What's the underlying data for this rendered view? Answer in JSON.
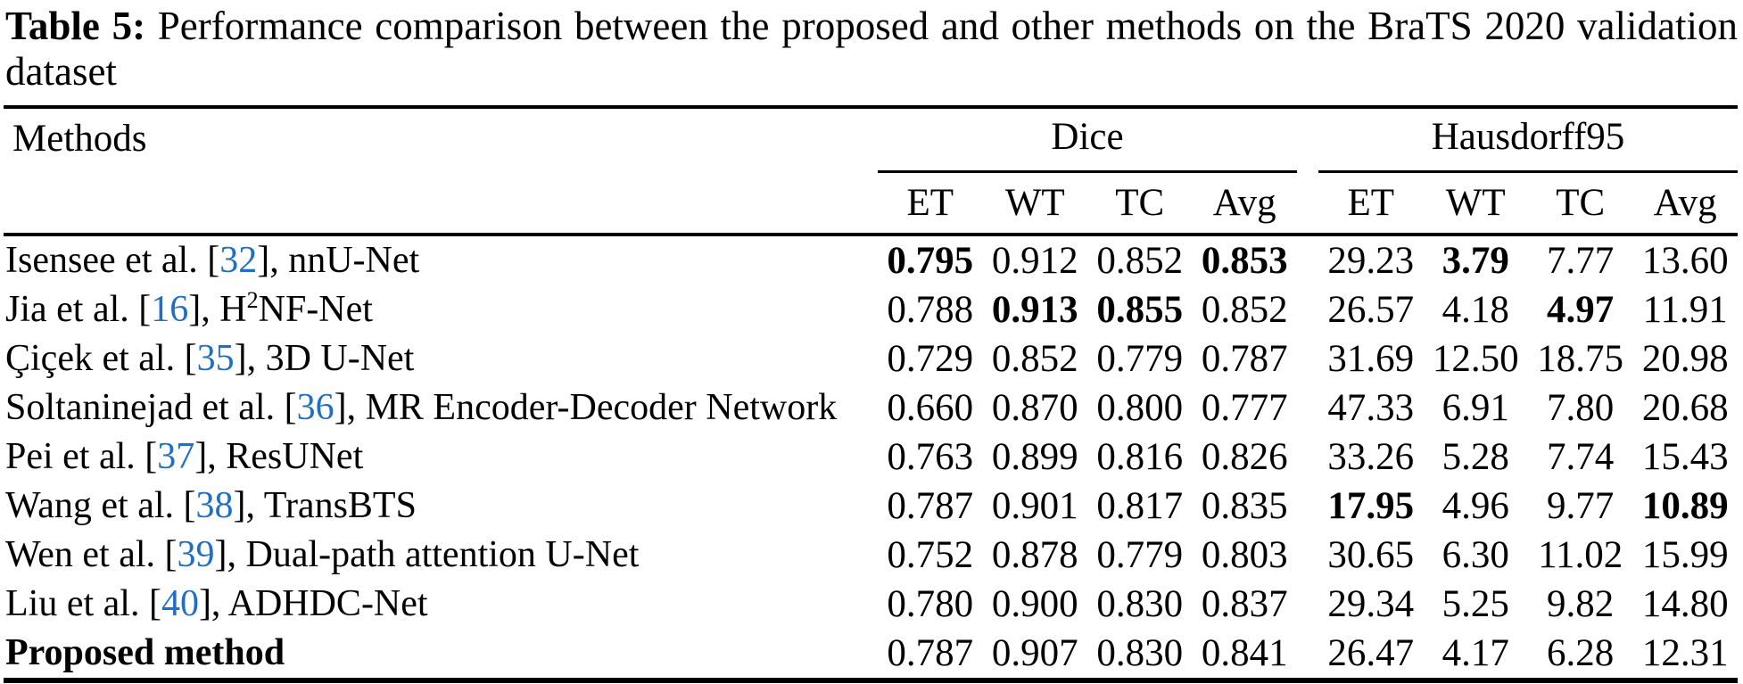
{
  "title": {
    "label": "Table 5:",
    "text": " Performance comparison between the proposed and other methods on the BraTS 2020 validation dataset"
  },
  "colors": {
    "citation_blue": "#1f6fc5",
    "text_black": "#000000",
    "background": "#ffffff"
  },
  "table": {
    "methods_header": "Methods",
    "groups": [
      {
        "label": "Dice"
      },
      {
        "label": "Hausdorff95"
      }
    ],
    "subheaders": [
      "ET",
      "WT",
      "TC",
      "Avg"
    ],
    "rows": [
      {
        "method": {
          "pre": "Isensee et al. [",
          "cite": "32",
          "post": "], nnU-Net"
        },
        "dice": [
          "0.795",
          "0.912",
          "0.852",
          "0.853"
        ],
        "dice_bold": [
          1,
          0,
          0,
          1
        ],
        "hd": [
          "29.23",
          "3.79",
          "7.77",
          "13.60"
        ],
        "hd_bold": [
          0,
          1,
          0,
          0
        ]
      },
      {
        "method": {
          "pre": "Jia et al. [",
          "cite": "16",
          "post": "], H",
          "sup": "2",
          "end": "NF-Net"
        },
        "dice": [
          "0.788",
          "0.913",
          "0.855",
          "0.852"
        ],
        "dice_bold": [
          0,
          1,
          1,
          0
        ],
        "hd": [
          "26.57",
          "4.18",
          "4.97",
          "11.91"
        ],
        "hd_bold": [
          0,
          0,
          1,
          0
        ]
      },
      {
        "method": {
          "pre": "Çiçek et al. [",
          "cite": "35",
          "post": "], 3D U-Net"
        },
        "dice": [
          "0.729",
          "0.852",
          "0.779",
          "0.787"
        ],
        "dice_bold": [
          0,
          0,
          0,
          0
        ],
        "hd": [
          "31.69",
          "12.50",
          "18.75",
          "20.98"
        ],
        "hd_bold": [
          0,
          0,
          0,
          0
        ]
      },
      {
        "method": {
          "pre": "Soltaninejad et al. [",
          "cite": "36",
          "post": "], MR Encoder-Decoder Network"
        },
        "dice": [
          "0.660",
          "0.870",
          "0.800",
          "0.777"
        ],
        "dice_bold": [
          0,
          0,
          0,
          0
        ],
        "hd": [
          "47.33",
          "6.91",
          "7.80",
          "20.68"
        ],
        "hd_bold": [
          0,
          0,
          0,
          0
        ]
      },
      {
        "method": {
          "pre": "Pei et al. [",
          "cite": "37",
          "post": "], ResUNet"
        },
        "dice": [
          "0.763",
          "0.899",
          "0.816",
          "0.826"
        ],
        "dice_bold": [
          0,
          0,
          0,
          0
        ],
        "hd": [
          "33.26",
          "5.28",
          "7.74",
          "15.43"
        ],
        "hd_bold": [
          0,
          0,
          0,
          0
        ]
      },
      {
        "method": {
          "pre": "Wang et al. [",
          "cite": "38",
          "post": "], TransBTS"
        },
        "dice": [
          "0.787",
          "0.901",
          "0.817",
          "0.835"
        ],
        "dice_bold": [
          0,
          0,
          0,
          0
        ],
        "hd": [
          "17.95",
          "4.96",
          "9.77",
          "10.89"
        ],
        "hd_bold": [
          1,
          0,
          0,
          1
        ]
      },
      {
        "method": {
          "pre": "Wen et al. [",
          "cite": "39",
          "post": "], Dual-path attention U-Net"
        },
        "dice": [
          "0.752",
          "0.878",
          "0.779",
          "0.803"
        ],
        "dice_bold": [
          0,
          0,
          0,
          0
        ],
        "hd": [
          "30.65",
          "6.30",
          "11.02",
          "15.99"
        ],
        "hd_bold": [
          0,
          0,
          0,
          0
        ]
      },
      {
        "method": {
          "pre": "Liu et al. [",
          "cite": "40",
          "post": "], ADHDC-Net"
        },
        "dice": [
          "0.780",
          "0.900",
          "0.830",
          "0.837"
        ],
        "dice_bold": [
          0,
          0,
          0,
          0
        ],
        "hd": [
          "29.34",
          "5.25",
          "9.82",
          "14.80"
        ],
        "hd_bold": [
          0,
          0,
          0,
          0
        ]
      },
      {
        "method": {
          "pre": "Proposed method",
          "bold": true
        },
        "dice": [
          "0.787",
          "0.907",
          "0.830",
          "0.841"
        ],
        "dice_bold": [
          0,
          0,
          0,
          0
        ],
        "hd": [
          "26.47",
          "4.17",
          "6.28",
          "12.31"
        ],
        "hd_bold": [
          0,
          0,
          0,
          0
        ]
      }
    ]
  }
}
